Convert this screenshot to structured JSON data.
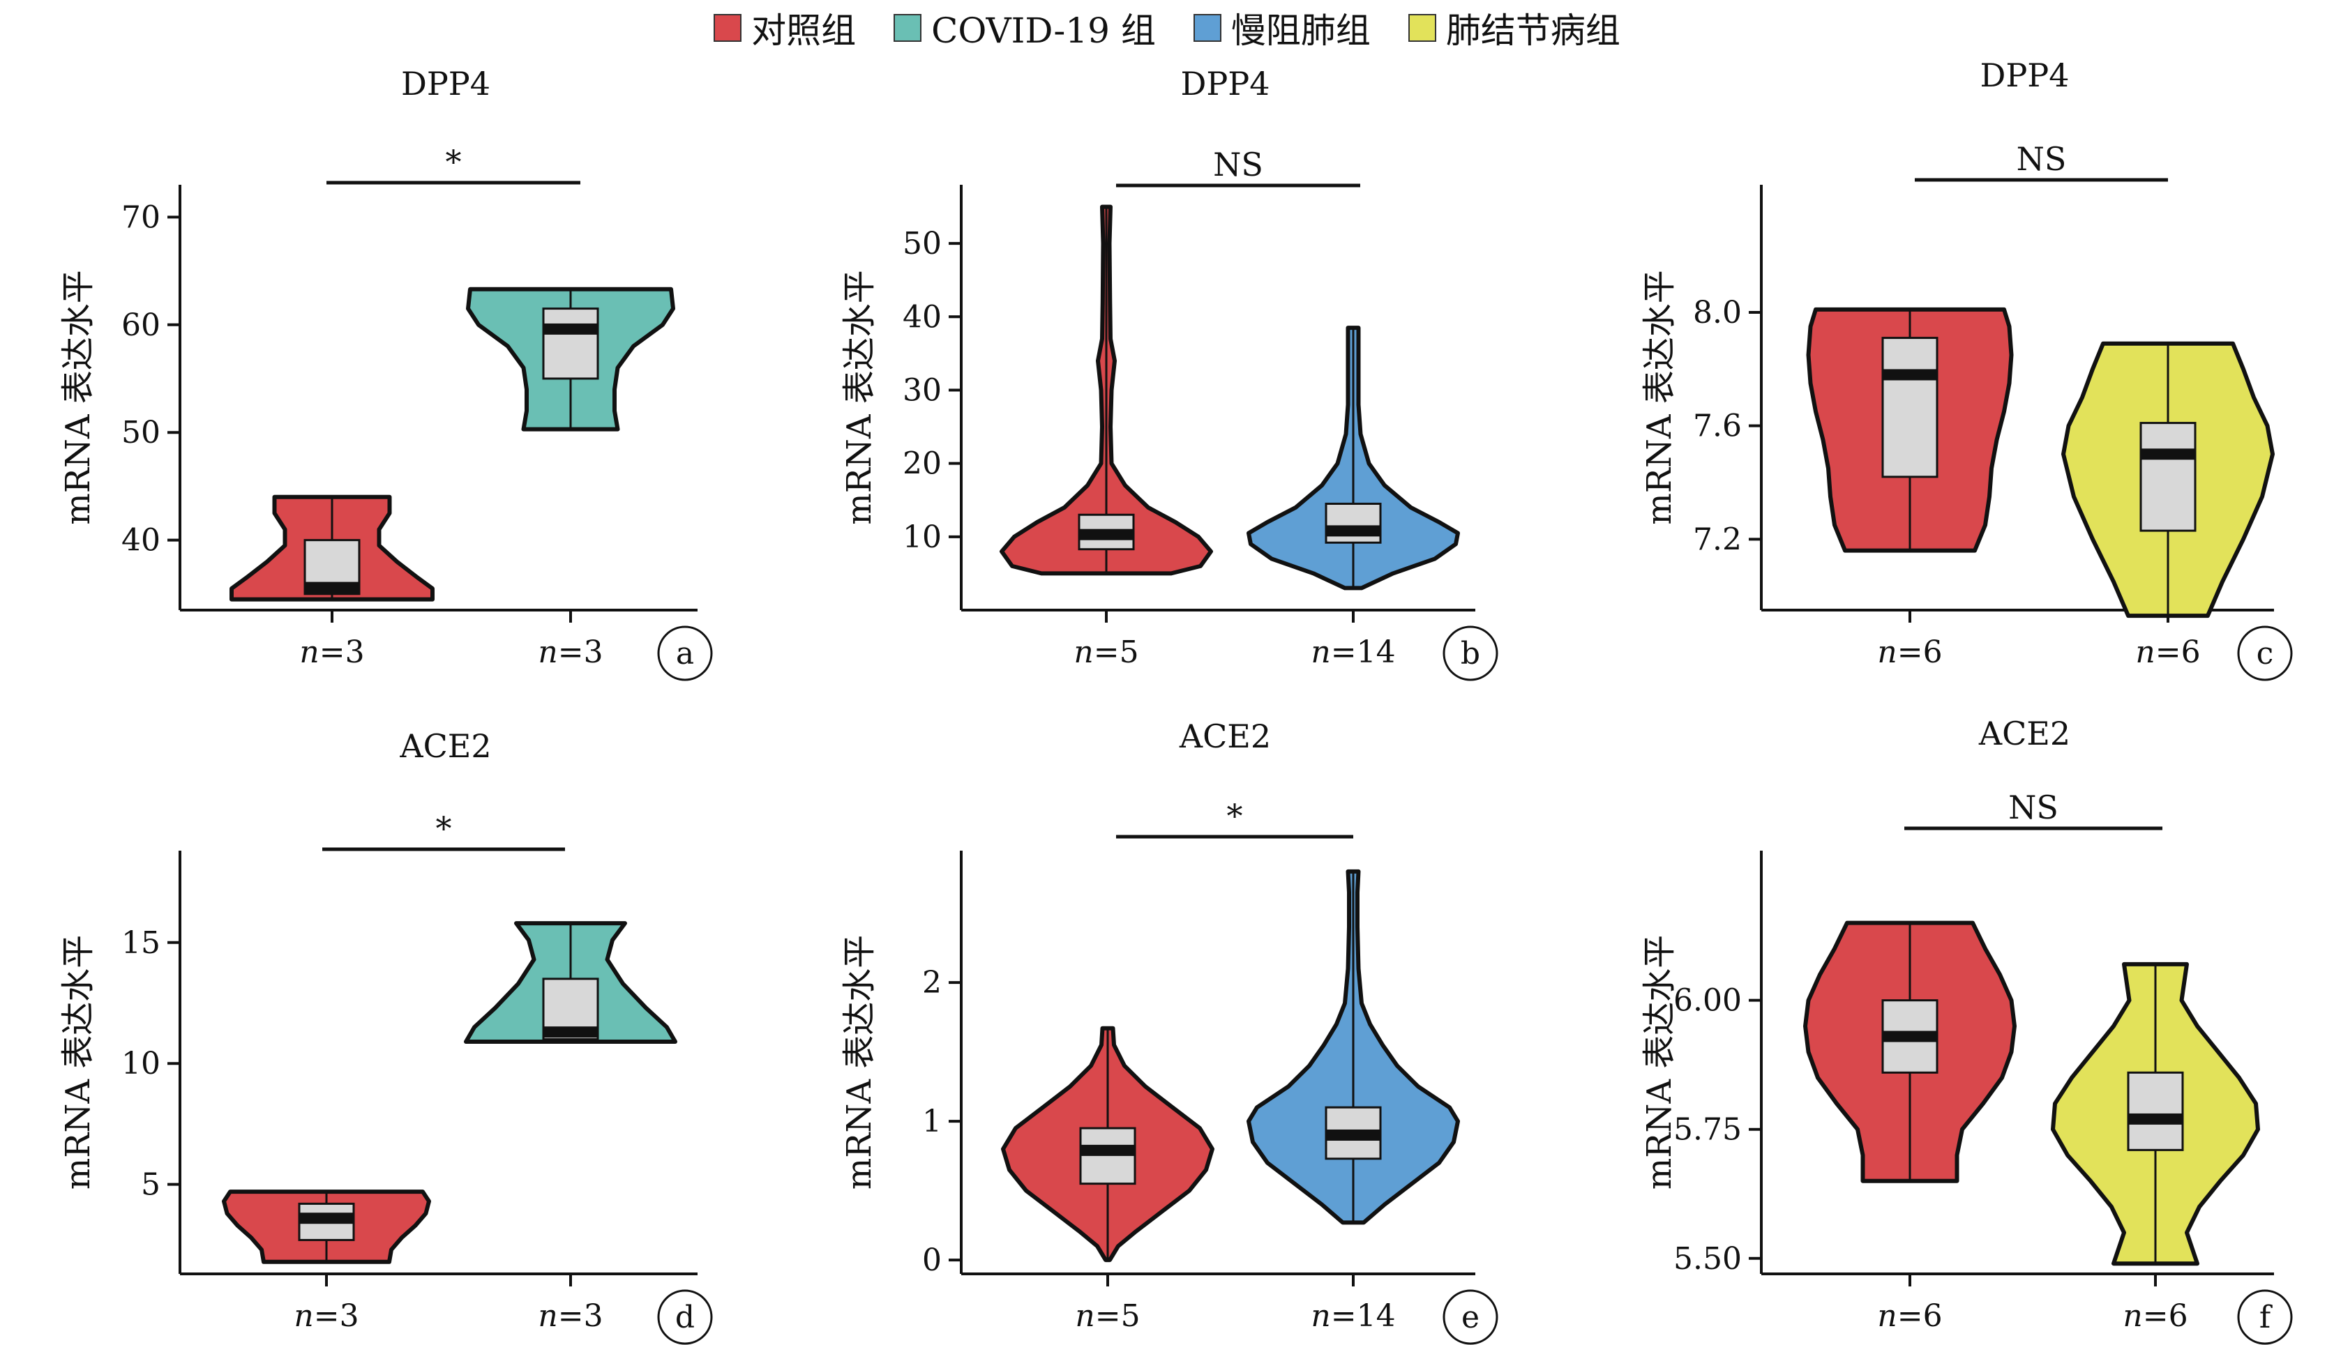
{
  "legend": [
    {
      "label": "对照组",
      "color": "#d9484c"
    },
    {
      "label": "COVID-19 组",
      "color": "#6abfb4"
    },
    {
      "label": "慢阻肺组",
      "color": "#5f9fd4"
    },
    {
      "label": "肺结节病组",
      "color": "#e2e25a"
    }
  ],
  "chart_data": [
    {
      "panel": "a",
      "type": "violin",
      "title": "DPP4",
      "ylabel": "mRNA 表达水平",
      "ylim": [
        33.5,
        73
      ],
      "yticks": [
        40,
        50,
        60,
        70
      ],
      "significance": "*",
      "groups": [
        {
          "name": "对照组",
          "label": "n=3",
          "color": "#d9484c",
          "min": 34.5,
          "max": 44,
          "q1": 35,
          "median": 35.6,
          "q3": 40,
          "shape": [
            [
              34.5,
              0.96
            ],
            [
              35.5,
              0.96
            ],
            [
              36.5,
              0.82
            ],
            [
              38,
              0.62
            ],
            [
              39.5,
              0.45
            ],
            [
              41,
              0.45
            ],
            [
              42.5,
              0.55
            ],
            [
              44,
              0.55
            ]
          ]
        },
        {
          "name": "COVID-19 组",
          "label": "n=3",
          "color": "#6abfb4",
          "min": 50.3,
          "max": 63.3,
          "q1": 55,
          "median": 59.6,
          "q3": 61.5,
          "shape": [
            [
              50.3,
              0.45
            ],
            [
              52,
              0.42
            ],
            [
              54,
              0.42
            ],
            [
              56,
              0.45
            ],
            [
              58,
              0.6
            ],
            [
              60,
              0.88
            ],
            [
              61.5,
              0.98
            ],
            [
              63.3,
              0.96
            ]
          ]
        }
      ]
    },
    {
      "panel": "b",
      "type": "violin",
      "title": "DPP4",
      "ylabel": "mRNA 表达水平",
      "ylim": [
        0,
        58
      ],
      "yticks": [
        10,
        20,
        30,
        40,
        50
      ],
      "significance": "NS",
      "groups": [
        {
          "name": "对照组",
          "label": "n=5",
          "color": "#d9484c",
          "min": 5,
          "max": 55,
          "q1": 8.3,
          "median": 10.3,
          "q3": 13,
          "shape": [
            [
              5,
              0.62
            ],
            [
              6,
              0.9
            ],
            [
              8,
              1.0
            ],
            [
              10,
              0.88
            ],
            [
              12,
              0.66
            ],
            [
              14,
              0.4
            ],
            [
              17,
              0.18
            ],
            [
              20,
              0.05
            ],
            [
              25,
              0.04
            ],
            [
              30,
              0.05
            ],
            [
              34,
              0.08
            ],
            [
              37,
              0.04
            ],
            [
              42,
              0.035
            ],
            [
              50,
              0.03
            ],
            [
              55,
              0.04
            ]
          ]
        },
        {
          "name": "慢阻肺组",
          "label": "n=14",
          "color": "#5f9fd4",
          "min": 3,
          "max": 38.5,
          "q1": 9.2,
          "median": 10.8,
          "q3": 14.5,
          "shape": [
            [
              3,
              0.08
            ],
            [
              5,
              0.38
            ],
            [
              7,
              0.78
            ],
            [
              9,
              0.98
            ],
            [
              10.5,
              1.0
            ],
            [
              12,
              0.82
            ],
            [
              14,
              0.55
            ],
            [
              17,
              0.3
            ],
            [
              20,
              0.15
            ],
            [
              24,
              0.07
            ],
            [
              28,
              0.05
            ],
            [
              32,
              0.05
            ],
            [
              36,
              0.05
            ],
            [
              38.5,
              0.05
            ]
          ]
        }
      ]
    },
    {
      "panel": "c",
      "type": "violin",
      "title": "DPP4",
      "ylabel": "mRNA 表达水平",
      "ylim": [
        6.95,
        8.45
      ],
      "yticks": [
        7.2,
        7.6,
        8.0
      ],
      "significance": "NS",
      "groups": [
        {
          "name": "对照组",
          "label": "n=6",
          "color": "#d9484c",
          "min": 7.16,
          "max": 8.01,
          "q1": 7.42,
          "median": 7.78,
          "q3": 7.91,
          "shape": [
            [
              7.16,
              0.62
            ],
            [
              7.25,
              0.72
            ],
            [
              7.35,
              0.76
            ],
            [
              7.45,
              0.78
            ],
            [
              7.55,
              0.83
            ],
            [
              7.65,
              0.9
            ],
            [
              7.75,
              0.95
            ],
            [
              7.85,
              0.97
            ],
            [
              7.95,
              0.95
            ],
            [
              8.01,
              0.9
            ]
          ]
        },
        {
          "name": "肺结节病组",
          "label": "n=6",
          "color": "#e2e25a",
          "min": 6.93,
          "max": 7.89,
          "q1": 7.23,
          "median": 7.5,
          "q3": 7.61,
          "shape": [
            [
              6.93,
              0.38
            ],
            [
              7.05,
              0.52
            ],
            [
              7.2,
              0.72
            ],
            [
              7.35,
              0.9
            ],
            [
              7.5,
              1.0
            ],
            [
              7.6,
              0.95
            ],
            [
              7.7,
              0.82
            ],
            [
              7.8,
              0.72
            ],
            [
              7.89,
              0.62
            ]
          ]
        }
      ]
    },
    {
      "panel": "d",
      "type": "violin",
      "title": "ACE2",
      "ylabel": "mRNA 表达水平",
      "ylim": [
        1.3,
        18.8
      ],
      "yticks": [
        5,
        10,
        15
      ],
      "significance": "*",
      "groups": [
        {
          "name": "对照组",
          "label": "n=3",
          "color": "#d9484c",
          "min": 1.8,
          "max": 4.7,
          "q1": 2.7,
          "median": 3.6,
          "q3": 4.2,
          "shape": [
            [
              1.8,
              0.6
            ],
            [
              2.3,
              0.62
            ],
            [
              2.8,
              0.72
            ],
            [
              3.3,
              0.85
            ],
            [
              3.8,
              0.95
            ],
            [
              4.3,
              0.98
            ],
            [
              4.7,
              0.92
            ]
          ]
        },
        {
          "name": "COVID-19 组",
          "label": "n=3",
          "color": "#6abfb4",
          "min": 10.9,
          "max": 15.8,
          "q1": 11,
          "median": 11.3,
          "q3": 13.5,
          "shape": [
            [
              10.9,
              1.0
            ],
            [
              11.5,
              0.92
            ],
            [
              12.3,
              0.72
            ],
            [
              13.3,
              0.5
            ],
            [
              14.3,
              0.35
            ],
            [
              15.1,
              0.4
            ],
            [
              15.8,
              0.52
            ]
          ]
        }
      ]
    },
    {
      "panel": "e",
      "type": "violin",
      "title": "ACE2",
      "ylabel": "mRNA 表达水平",
      "ylim": [
        -0.1,
        2.95
      ],
      "yticks": [
        0,
        1,
        2
      ],
      "significance": "*",
      "groups": [
        {
          "name": "对照组",
          "label": "n=5",
          "color": "#d9484c",
          "min": 0,
          "max": 1.67,
          "q1": 0.55,
          "median": 0.79,
          "q3": 0.95,
          "shape": [
            [
              0,
              0.02
            ],
            [
              0.1,
              0.1
            ],
            [
              0.2,
              0.26
            ],
            [
              0.35,
              0.52
            ],
            [
              0.5,
              0.78
            ],
            [
              0.65,
              0.94
            ],
            [
              0.8,
              1.0
            ],
            [
              0.95,
              0.88
            ],
            [
              1.1,
              0.62
            ],
            [
              1.25,
              0.36
            ],
            [
              1.4,
              0.16
            ],
            [
              1.55,
              0.06
            ],
            [
              1.67,
              0.05
            ]
          ]
        },
        {
          "name": "慢阻肺组",
          "label": "n=14",
          "color": "#5f9fd4",
          "min": 0.27,
          "max": 2.8,
          "q1": 0.73,
          "median": 0.9,
          "q3": 1.1,
          "shape": [
            [
              0.27,
              0.1
            ],
            [
              0.4,
              0.3
            ],
            [
              0.55,
              0.56
            ],
            [
              0.7,
              0.82
            ],
            [
              0.85,
              0.96
            ],
            [
              1.0,
              1.0
            ],
            [
              1.1,
              0.92
            ],
            [
              1.25,
              0.62
            ],
            [
              1.4,
              0.42
            ],
            [
              1.55,
              0.28
            ],
            [
              1.7,
              0.16
            ],
            [
              1.85,
              0.08
            ],
            [
              2.1,
              0.05
            ],
            [
              2.4,
              0.04
            ],
            [
              2.65,
              0.04
            ],
            [
              2.8,
              0.05
            ]
          ]
        }
      ]
    },
    {
      "panel": "f",
      "type": "violin",
      "title": "ACE2",
      "ylabel": "mRNA 表达水平",
      "ylim": [
        5.47,
        6.29
      ],
      "yticks": [
        5.5,
        5.75,
        6.0
      ],
      "significance": "NS",
      "groups": [
        {
          "name": "对照组",
          "label": "n=6",
          "color": "#d9484c",
          "min": 5.65,
          "max": 6.15,
          "q1": 5.86,
          "median": 5.93,
          "q3": 6.0,
          "shape": [
            [
              5.65,
              0.45
            ],
            [
              5.7,
              0.45
            ],
            [
              5.75,
              0.5
            ],
            [
              5.8,
              0.7
            ],
            [
              5.85,
              0.88
            ],
            [
              5.9,
              0.97
            ],
            [
              5.95,
              1.0
            ],
            [
              6.0,
              0.97
            ],
            [
              6.05,
              0.86
            ],
            [
              6.1,
              0.72
            ],
            [
              6.15,
              0.6
            ]
          ]
        },
        {
          "name": "肺结节病组",
          "label": "n=6",
          "color": "#e2e25a",
          "min": 5.49,
          "max": 6.07,
          "q1": 5.71,
          "median": 5.77,
          "q3": 5.86,
          "shape": [
            [
              5.49,
              0.4
            ],
            [
              5.55,
              0.3
            ],
            [
              5.6,
              0.42
            ],
            [
              5.65,
              0.62
            ],
            [
              5.7,
              0.84
            ],
            [
              5.75,
              0.98
            ],
            [
              5.8,
              0.96
            ],
            [
              5.85,
              0.8
            ],
            [
              5.9,
              0.6
            ],
            [
              5.95,
              0.4
            ],
            [
              6.0,
              0.25
            ],
            [
              6.07,
              0.3
            ]
          ]
        }
      ]
    }
  ]
}
